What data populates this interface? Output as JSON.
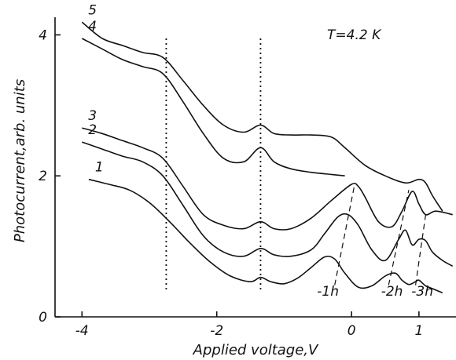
{
  "chart_data": {
    "type": "line",
    "title": "",
    "annotation_temperature": "T=4.2 K",
    "xlabel": "Applied voltage,V",
    "ylabel": "Photocurrent,arb. units",
    "xlim": [
      -4.4,
      1.55
    ],
    "ylim": [
      0,
      4.25
    ],
    "x_ticks": [
      {
        "value": -4,
        "label": "-4"
      },
      {
        "value": -2,
        "label": "-2"
      },
      {
        "value": 0,
        "label": "0"
      },
      {
        "value": 1,
        "label": "1"
      }
    ],
    "y_ticks": [
      {
        "value": 0,
        "label": "0"
      },
      {
        "value": 2,
        "label": "2"
      },
      {
        "value": 4,
        "label": "4"
      }
    ],
    "grid": false,
    "series": [
      {
        "name": "1",
        "x": [
          -3.9,
          -3.6,
          -3.3,
          -3.0,
          -2.7,
          -2.4,
          -2.1,
          -1.8,
          -1.5,
          -1.35,
          -1.2,
          -1.0,
          -0.8,
          -0.6,
          -0.4,
          -0.25,
          -0.1,
          0.1,
          0.3,
          0.5,
          0.65,
          0.75,
          0.85,
          0.95,
          1.0,
          1.1,
          1.2,
          1.35
        ],
        "y": [
          1.95,
          1.88,
          1.8,
          1.62,
          1.35,
          1.05,
          0.78,
          0.58,
          0.5,
          0.56,
          0.5,
          0.47,
          0.55,
          0.7,
          0.85,
          0.82,
          0.62,
          0.42,
          0.44,
          0.58,
          0.62,
          0.52,
          0.46,
          0.5,
          0.52,
          0.44,
          0.4,
          0.34
        ]
      },
      {
        "name": "2",
        "x": [
          -4.0,
          -3.7,
          -3.4,
          -3.1,
          -2.8,
          -2.5,
          -2.2,
          -1.9,
          -1.6,
          -1.35,
          -1.15,
          -0.9,
          -0.6,
          -0.4,
          -0.2,
          -0.05,
          0.1,
          0.3,
          0.5,
          0.7,
          0.8,
          0.9,
          1.0,
          1.1,
          1.2,
          1.35,
          1.5
        ],
        "y": [
          2.48,
          2.38,
          2.28,
          2.2,
          2.0,
          1.58,
          1.15,
          0.92,
          0.86,
          0.97,
          0.88,
          0.86,
          0.95,
          1.18,
          1.42,
          1.45,
          1.3,
          0.95,
          0.8,
          1.1,
          1.23,
          1.02,
          1.1,
          1.08,
          0.92,
          0.8,
          0.72
        ]
      },
      {
        "name": "3",
        "x": [
          -4.0,
          -3.7,
          -3.4,
          -3.1,
          -2.8,
          -2.5,
          -2.2,
          -1.9,
          -1.6,
          -1.35,
          -1.15,
          -0.9,
          -0.6,
          -0.3,
          0.0,
          0.1,
          0.2,
          0.4,
          0.6,
          0.75,
          0.9,
          1.0,
          1.1,
          1.25,
          1.5
        ],
        "y": [
          2.68,
          2.6,
          2.5,
          2.4,
          2.25,
          1.85,
          1.45,
          1.3,
          1.25,
          1.35,
          1.25,
          1.25,
          1.4,
          1.65,
          1.88,
          1.85,
          1.7,
          1.35,
          1.28,
          1.5,
          1.78,
          1.6,
          1.45,
          1.5,
          1.45
        ]
      },
      {
        "name": "4",
        "x": [
          -4.0,
          -3.7,
          -3.4,
          -3.1,
          -2.8,
          -2.5,
          -2.2,
          -1.9,
          -1.6,
          -1.35,
          -1.15,
          -0.9,
          -0.6,
          -0.3,
          -0.1
        ],
        "y": [
          3.95,
          3.8,
          3.65,
          3.55,
          3.45,
          3.05,
          2.6,
          2.25,
          2.2,
          2.4,
          2.2,
          2.1,
          2.05,
          2.02,
          2.0
        ]
      },
      {
        "name": "5",
        "x": [
          -4.0,
          -3.7,
          -3.4,
          -3.1,
          -2.8,
          -2.5,
          -2.2,
          -1.9,
          -1.6,
          -1.35,
          -1.15,
          -0.9,
          -0.6,
          -0.3,
          -0.1,
          0.2,
          0.5,
          0.8,
          1.0,
          1.1,
          1.2,
          1.35
        ],
        "y": [
          4.18,
          3.95,
          3.85,
          3.75,
          3.68,
          3.35,
          3.0,
          2.72,
          2.62,
          2.72,
          2.6,
          2.58,
          2.58,
          2.55,
          2.4,
          2.15,
          2.0,
          1.9,
          1.95,
          1.9,
          1.72,
          1.5
        ]
      }
    ],
    "dotted_guides_x": [
      -2.75,
      -1.35
    ],
    "peak_labels": [
      {
        "label": "-1h",
        "x": -0.35,
        "y": 0.3
      },
      {
        "label": "-2h",
        "x": 0.6,
        "y": 0.3
      },
      {
        "label": "-3h",
        "x": 1.05,
        "y": 0.3
      }
    ],
    "peak_guides": [
      {
        "x1": -0.25,
        "y1": 0.45,
        "x2": 0.05,
        "y2": 1.9
      },
      {
        "x1": 0.55,
        "y1": 0.45,
        "x2": 0.85,
        "y2": 1.8
      },
      {
        "x1": 0.95,
        "y1": 0.45,
        "x2": 1.1,
        "y2": 1.45
      }
    ]
  }
}
